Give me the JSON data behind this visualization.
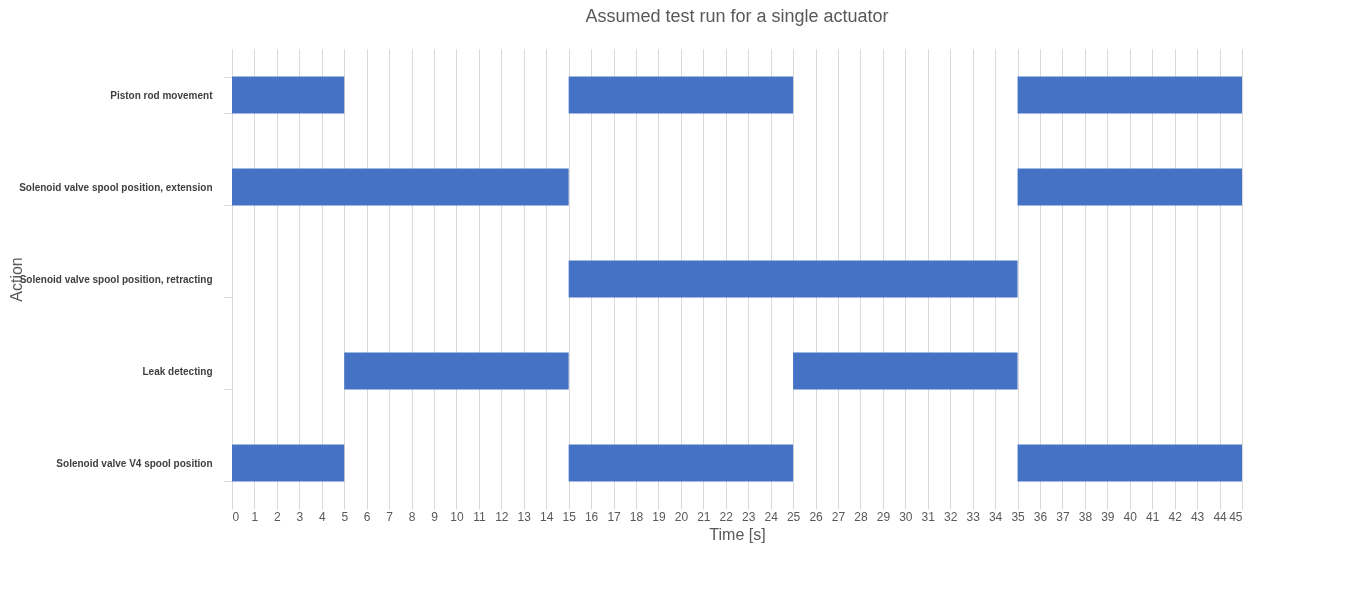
{
  "chart_data": {
    "type": "bar",
    "orientation": "horizontal",
    "title": "Assumed test run for a single actuator",
    "xlabel": "Time [s]",
    "ylabel": "Action",
    "categories": [
      "Piston rod movement",
      "Solenoid valve spool position, extension",
      "Solenoid valve spool position, retracting",
      "Leak detecting",
      "Solenoid valve V4 spool position"
    ],
    "series": [
      {
        "color": "#4472c4",
        "base": [
          0,
          0,
          15,
          5,
          0
        ],
        "values": [
          5,
          15,
          20,
          10,
          5
        ]
      },
      {
        "color": "#4472c4",
        "base": [
          15,
          35,
          null,
          25,
          15
        ],
        "values": [
          10,
          10,
          null,
          10,
          10
        ]
      },
      {
        "color": "#4472c4",
        "base": [
          35,
          null,
          null,
          null,
          35
        ],
        "values": [
          10,
          null,
          null,
          null,
          10
        ]
      }
    ],
    "xlim": [
      0,
      45
    ],
    "xticks": [
      0,
      1,
      2,
      3,
      4,
      5,
      6,
      7,
      8,
      9,
      10,
      11,
      12,
      13,
      14,
      15,
      16,
      17,
      18,
      19,
      20,
      21,
      22,
      23,
      24,
      25,
      26,
      27,
      28,
      29,
      30,
      31,
      32,
      33,
      34,
      35,
      36,
      37,
      38,
      39,
      40,
      41,
      42,
      43,
      44,
      45
    ],
    "grid": "x"
  }
}
